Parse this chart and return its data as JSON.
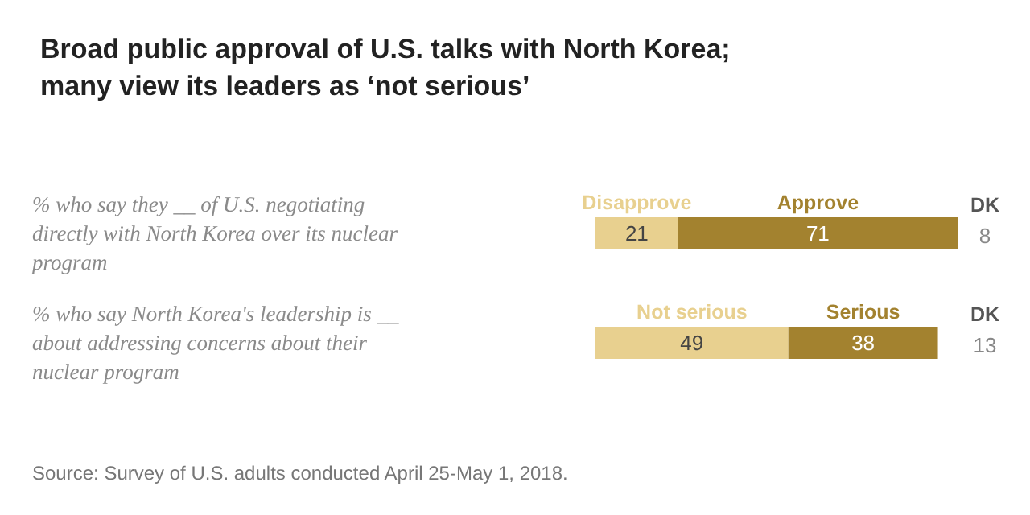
{
  "chart_data": {
    "type": "bar",
    "orientation": "horizontal",
    "title": "Broad public approval of U.S. talks with North Korea;\nmany view its leaders as ‘not serious’",
    "categories": [
      "% who say they __ of U.S. negotiating directly with North Korea over its nuclear program",
      "% who say North Korea's leadership is __ about addressing concerns about their nuclear program"
    ],
    "series": [
      {
        "name": "Disapprove",
        "color": "#e8d08f",
        "values": [
          21,
          null
        ]
      },
      {
        "name": "Approve",
        "color": "#a3822f",
        "values": [
          71,
          null
        ]
      },
      {
        "name": "Not serious",
        "color": "#e8d08f",
        "values": [
          null,
          49
        ]
      },
      {
        "name": "Serious",
        "color": "#a3822f",
        "values": [
          null,
          38
        ]
      }
    ],
    "stacked": true,
    "data_labels": true,
    "tick_labels": false,
    "annotations": [
      "DK\n8",
      "DK\n13",
      "Source: Survey of U.S. adults conducted April 25-May 1, 2018."
    ]
  }
}
